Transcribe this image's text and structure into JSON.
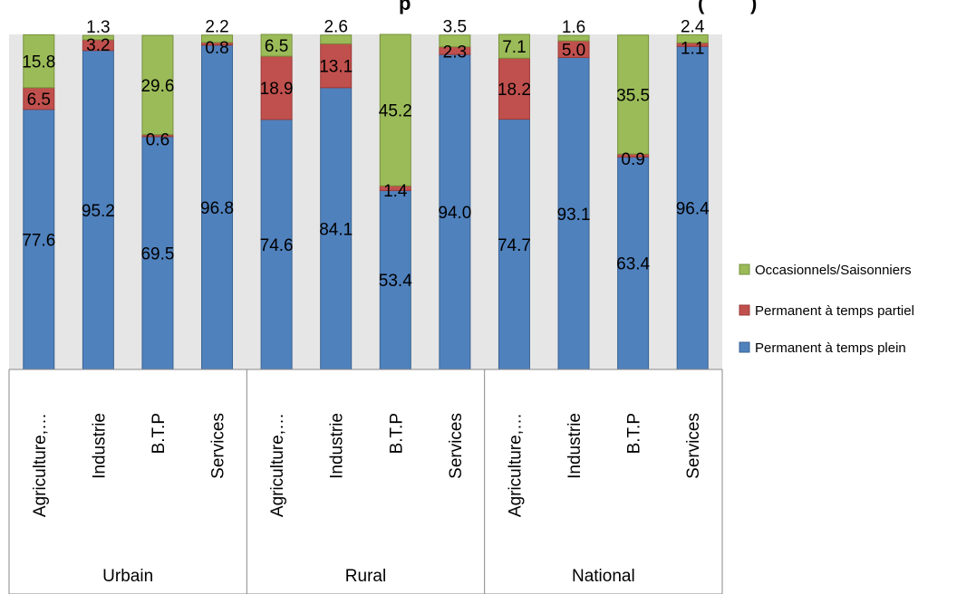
{
  "chart_data": {
    "type": "bar",
    "stacked": true,
    "title": "",
    "title_visible_fragments": [
      "p",
      "(",
      ")"
    ],
    "xlabel": "",
    "ylabel": "",
    "ylim": [
      0,
      100
    ],
    "grid": false,
    "legend_position": "right",
    "groups": [
      {
        "label": "Urbain",
        "categories": [
          "Agriculture,…",
          "Industrie",
          "B.T.P",
          "Services"
        ]
      },
      {
        "label": "Rural",
        "categories": [
          "Agriculture,…",
          "Industrie",
          "B.T.P",
          "Services"
        ]
      },
      {
        "label": "National",
        "categories": [
          "Agriculture,…",
          "Industrie",
          "B.T.P",
          "Services"
        ]
      }
    ],
    "series": [
      {
        "name": "Permanent à temps plein",
        "color": "#4F81BD",
        "border": "#3A6393",
        "values": [
          77.6,
          95.2,
          69.5,
          96.8,
          74.6,
          84.1,
          53.4,
          94.0,
          74.7,
          93.1,
          63.4,
          96.4
        ],
        "labels": [
          "77.6",
          "95.2",
          "69.5",
          "96.8",
          "74.6",
          "84.1",
          "53.4",
          "94.0",
          "74.7",
          "93.1",
          "63.4",
          "96.4"
        ]
      },
      {
        "name": "Permanent à temps partiel",
        "color": "#C0504D",
        "border": "#9B3A38",
        "values": [
          6.5,
          3.2,
          0.6,
          0.8,
          18.9,
          13.1,
          1.4,
          2.3,
          18.2,
          5.0,
          0.9,
          1.1
        ],
        "labels": [
          "6.5",
          "3.2",
          "0.6",
          "0.8",
          "18.9",
          "13.1",
          "1.4",
          "2.3",
          "18.2",
          "5.0",
          "0.9",
          "1.1"
        ]
      },
      {
        "name": "Occasionnels/Saisonniers",
        "color": "#9BBB59",
        "border": "#76923C",
        "values": [
          15.8,
          1.3,
          29.6,
          2.2,
          6.5,
          2.6,
          45.2,
          3.5,
          7.1,
          1.6,
          35.5,
          2.4
        ],
        "labels": [
          "15.8",
          "1.3",
          "29.6",
          "2.2",
          "6.5",
          "2.6",
          "45.2",
          "3.5",
          "7.1",
          "1.6",
          "35.5",
          "2.4"
        ]
      }
    ],
    "legend_order": [
      "Occasionnels/Saisonniers",
      "Permanent à temps partiel",
      "Permanent à temps plein"
    ],
    "colors": {
      "plot_background": "#E6E6E6",
      "axis": "#888888"
    }
  }
}
